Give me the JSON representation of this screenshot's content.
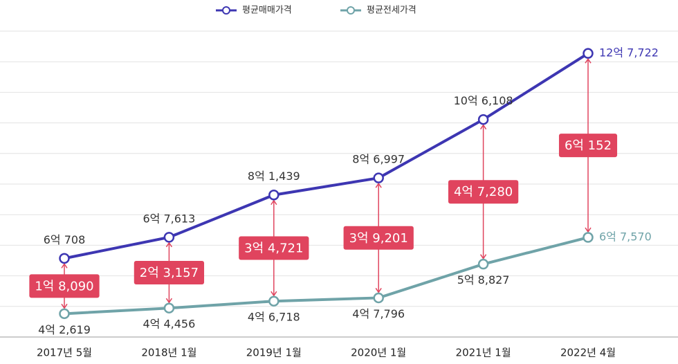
{
  "chart_data": {
    "type": "line",
    "categories": [
      "2017년 5월",
      "2018년 1월",
      "2019년 1월",
      "2020년 1월",
      "2021년 1월",
      "2022년 4월"
    ],
    "series": [
      {
        "name": "평균매매가격",
        "color": "#3d36b2",
        "values": [
          60708,
          67613,
          81439,
          86997,
          106108,
          127722
        ],
        "value_labels": [
          "6억 708",
          "6억 7,613",
          "8억 1,439",
          "8억 6,997",
          "10억 6,108",
          "12억 7,722"
        ]
      },
      {
        "name": "평균전세가격",
        "color": "#6fa3a8",
        "values": [
          42619,
          44456,
          46718,
          47796,
          58827,
          67570
        ],
        "value_labels": [
          "4억 2,619",
          "4억 4,456",
          "4억 6,718",
          "4억 7,796",
          "5억 8,827",
          "6억 7,570"
        ]
      }
    ],
    "differences": {
      "color": "#e0445e",
      "values": [
        18090,
        23157,
        34721,
        39201,
        47280,
        60152
      ],
      "value_labels": [
        "1억 8,090",
        "2억 3,157",
        "3억 4,721",
        "3억 9,201",
        "4억 7,280",
        "6억 152"
      ]
    },
    "ylim": [
      35000,
      135000
    ],
    "yticks": [
      35000,
      45000,
      55000,
      65000,
      75000,
      85000,
      95000,
      105000,
      115000,
      125000,
      135000
    ],
    "grid": true
  }
}
